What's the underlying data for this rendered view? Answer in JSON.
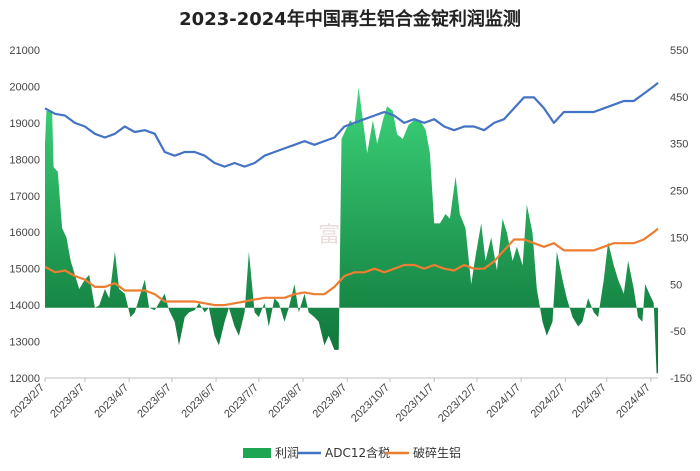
{
  "chart_data": {
    "type": "line",
    "title": "2023-2024年中国再生铝合金锭利润监测",
    "watermark": "富宝资讯",
    "categories": [
      "2023/2/7",
      "2023/3/7",
      "2023/4/7",
      "2023/5/7",
      "2023/6/7",
      "2023/7/7",
      "2023/8/7",
      "2023/9/7",
      "2023/10/7",
      "2023/11/7",
      "2023/12/7",
      "2024/1/7",
      "2024/2/7",
      "2024/3/7",
      "2024/4/7"
    ],
    "x_start": "2023-02-07",
    "x_end": "2024-04-12",
    "y_left": {
      "ticks": [
        "21000",
        "20000",
        "19000",
        "18000",
        "17000",
        "16000",
        "15000",
        "14000",
        "13000",
        "12000"
      ],
      "min": 12000,
      "max": 21000
    },
    "y_right": {
      "ticks": [
        "550",
        "450",
        "350",
        "250",
        "150",
        "50",
        "-50",
        "-150"
      ],
      "min": -150,
      "max": 550
    },
    "grid": false,
    "legend_position": "bottom",
    "colors": {
      "profit": "#1ea653",
      "profit_dark": "#0c6f35",
      "adc12": "#4472c4",
      "scrap": "#ed7d31"
    },
    "series": [
      {
        "name": "利润",
        "axis": "right",
        "kind": "area",
        "points": [
          [
            "2023-02-07",
            350
          ],
          [
            "2023-02-08",
            420
          ],
          [
            "2023-02-12",
            420
          ],
          [
            "2023-02-13",
            300
          ],
          [
            "2023-02-16",
            290
          ],
          [
            "2023-02-19",
            170
          ],
          [
            "2023-02-22",
            150
          ],
          [
            "2023-02-25",
            100
          ],
          [
            "2023-02-28",
            70
          ],
          [
            "2023-03-03",
            40
          ],
          [
            "2023-03-07",
            60
          ],
          [
            "2023-03-10",
            70
          ],
          [
            "2023-03-14",
            0
          ],
          [
            "2023-03-17",
            5
          ],
          [
            "2023-03-21",
            40
          ],
          [
            "2023-03-24",
            20
          ],
          [
            "2023-03-28",
            120
          ],
          [
            "2023-03-31",
            40
          ],
          [
            "2023-04-04",
            30
          ],
          [
            "2023-04-08",
            -20
          ],
          [
            "2023-04-11",
            -10
          ],
          [
            "2023-04-14",
            20
          ],
          [
            "2023-04-18",
            60
          ],
          [
            "2023-04-21",
            0
          ],
          [
            "2023-04-25",
            -5
          ],
          [
            "2023-04-28",
            10
          ],
          [
            "2023-05-02",
            30
          ],
          [
            "2023-05-05",
            -5
          ],
          [
            "2023-05-09",
            -30
          ],
          [
            "2023-05-12",
            -80
          ],
          [
            "2023-05-16",
            -20
          ],
          [
            "2023-05-19",
            -10
          ],
          [
            "2023-05-23",
            -5
          ],
          [
            "2023-05-26",
            10
          ],
          [
            "2023-05-30",
            -10
          ],
          [
            "2023-06-02",
            0
          ],
          [
            "2023-06-06",
            -60
          ],
          [
            "2023-06-09",
            -80
          ],
          [
            "2023-06-13",
            -30
          ],
          [
            "2023-06-16",
            0
          ],
          [
            "2023-06-20",
            -40
          ],
          [
            "2023-06-23",
            -60
          ],
          [
            "2023-06-27",
            -10
          ],
          [
            "2023-06-30",
            120
          ],
          [
            "2023-07-04",
            -10
          ],
          [
            "2023-07-07",
            -20
          ],
          [
            "2023-07-11",
            10
          ],
          [
            "2023-07-14",
            -40
          ],
          [
            "2023-07-18",
            20
          ],
          [
            "2023-07-21",
            10
          ],
          [
            "2023-07-25",
            -30
          ],
          [
            "2023-07-28",
            0
          ],
          [
            "2023-08-01",
            50
          ],
          [
            "2023-08-04",
            -10
          ],
          [
            "2023-08-08",
            30
          ],
          [
            "2023-08-11",
            -10
          ],
          [
            "2023-08-15",
            -20
          ],
          [
            "2023-08-18",
            -30
          ],
          [
            "2023-08-22",
            -80
          ],
          [
            "2023-08-25",
            -60
          ],
          [
            "2023-08-29",
            -90
          ],
          [
            "2023-09-01",
            -90
          ],
          [
            "2023-09-03",
            360
          ],
          [
            "2023-09-06",
            380
          ],
          [
            "2023-09-09",
            400
          ],
          [
            "2023-09-12",
            390
          ],
          [
            "2023-09-15",
            470
          ],
          [
            "2023-09-18",
            400
          ],
          [
            "2023-09-21",
            330
          ],
          [
            "2023-09-25",
            400
          ],
          [
            "2023-09-28",
            350
          ],
          [
            "2023-10-02",
            400
          ],
          [
            "2023-10-05",
            430
          ],
          [
            "2023-10-09",
            420
          ],
          [
            "2023-10-12",
            370
          ],
          [
            "2023-10-16",
            360
          ],
          [
            "2023-10-20",
            390
          ],
          [
            "2023-10-24",
            400
          ],
          [
            "2023-10-28",
            400
          ],
          [
            "2023-11-01",
            380
          ],
          [
            "2023-11-04",
            330
          ],
          [
            "2023-11-07",
            180
          ],
          [
            "2023-11-11",
            180
          ],
          [
            "2023-11-15",
            200
          ],
          [
            "2023-11-18",
            190
          ],
          [
            "2023-11-22",
            280
          ],
          [
            "2023-11-25",
            200
          ],
          [
            "2023-11-29",
            170
          ],
          [
            "2023-12-03",
            50
          ],
          [
            "2023-12-06",
            110
          ],
          [
            "2023-12-10",
            180
          ],
          [
            "2023-12-13",
            100
          ],
          [
            "2023-12-17",
            150
          ],
          [
            "2023-12-21",
            80
          ],
          [
            "2023-12-25",
            190
          ],
          [
            "2023-12-28",
            160
          ],
          [
            "2024-01-01",
            100
          ],
          [
            "2024-01-04",
            130
          ],
          [
            "2024-01-08",
            90
          ],
          [
            "2024-01-11",
            220
          ],
          [
            "2024-01-15",
            160
          ],
          [
            "2024-01-18",
            40
          ],
          [
            "2024-01-22",
            -30
          ],
          [
            "2024-01-25",
            -60
          ],
          [
            "2024-01-29",
            -30
          ],
          [
            "2024-02-01",
            120
          ],
          [
            "2024-02-05",
            60
          ],
          [
            "2024-02-08",
            20
          ],
          [
            "2024-02-12",
            -20
          ],
          [
            "2024-02-16",
            -40
          ],
          [
            "2024-02-19",
            -30
          ],
          [
            "2024-02-23",
            20
          ],
          [
            "2024-02-27",
            -10
          ],
          [
            "2024-03-01",
            -20
          ],
          [
            "2024-03-05",
            60
          ],
          [
            "2024-03-08",
            140
          ],
          [
            "2024-03-12",
            90
          ],
          [
            "2024-03-15",
            60
          ],
          [
            "2024-03-19",
            30
          ],
          [
            "2024-03-22",
            100
          ],
          [
            "2024-03-26",
            40
          ],
          [
            "2024-03-29",
            -20
          ],
          [
            "2024-04-01",
            -30
          ],
          [
            "2024-04-03",
            50
          ],
          [
            "2024-04-06",
            30
          ],
          [
            "2024-04-09",
            10
          ],
          [
            "2024-04-11",
            -140
          ],
          [
            "2024-04-12",
            -140
          ]
        ]
      },
      {
        "name": "ADC12含税",
        "axis": "left",
        "kind": "line",
        "points": [
          [
            "2023-02-07",
            19400
          ],
          [
            "2023-02-14",
            19250
          ],
          [
            "2023-02-21",
            19200
          ],
          [
            "2023-02-28",
            19000
          ],
          [
            "2023-03-07",
            18900
          ],
          [
            "2023-03-14",
            18700
          ],
          [
            "2023-03-21",
            18600
          ],
          [
            "2023-03-28",
            18700
          ],
          [
            "2023-04-04",
            18900
          ],
          [
            "2023-04-11",
            18750
          ],
          [
            "2023-04-18",
            18800
          ],
          [
            "2023-04-25",
            18700
          ],
          [
            "2023-05-02",
            18200
          ],
          [
            "2023-05-09",
            18100
          ],
          [
            "2023-05-16",
            18200
          ],
          [
            "2023-05-23",
            18200
          ],
          [
            "2023-05-30",
            18100
          ],
          [
            "2023-06-06",
            17900
          ],
          [
            "2023-06-13",
            17800
          ],
          [
            "2023-06-20",
            17900
          ],
          [
            "2023-06-27",
            17800
          ],
          [
            "2023-07-04",
            17900
          ],
          [
            "2023-07-11",
            18100
          ],
          [
            "2023-07-18",
            18200
          ],
          [
            "2023-07-25",
            18300
          ],
          [
            "2023-08-01",
            18400
          ],
          [
            "2023-08-08",
            18500
          ],
          [
            "2023-08-15",
            18400
          ],
          [
            "2023-08-22",
            18500
          ],
          [
            "2023-08-29",
            18600
          ],
          [
            "2023-09-05",
            18900
          ],
          [
            "2023-09-12",
            19000
          ],
          [
            "2023-09-19",
            19100
          ],
          [
            "2023-09-26",
            19200
          ],
          [
            "2023-10-03",
            19300
          ],
          [
            "2023-10-10",
            19200
          ],
          [
            "2023-10-17",
            19000
          ],
          [
            "2023-10-24",
            19100
          ],
          [
            "2023-10-31",
            19000
          ],
          [
            "2023-11-07",
            19100
          ],
          [
            "2023-11-14",
            18900
          ],
          [
            "2023-11-21",
            18800
          ],
          [
            "2023-11-28",
            18900
          ],
          [
            "2023-12-05",
            18900
          ],
          [
            "2023-12-12",
            18800
          ],
          [
            "2023-12-19",
            19000
          ],
          [
            "2023-12-26",
            19100
          ],
          [
            "2024-01-02",
            19400
          ],
          [
            "2024-01-09",
            19700
          ],
          [
            "2024-01-16",
            19700
          ],
          [
            "2024-01-23",
            19400
          ],
          [
            "2024-01-30",
            19000
          ],
          [
            "2024-02-06",
            19300
          ],
          [
            "2024-02-13",
            19300
          ],
          [
            "2024-02-20",
            19300
          ],
          [
            "2024-02-27",
            19300
          ],
          [
            "2024-03-05",
            19400
          ],
          [
            "2024-03-12",
            19500
          ],
          [
            "2024-03-19",
            19600
          ],
          [
            "2024-03-26",
            19600
          ],
          [
            "2024-04-02",
            19800
          ],
          [
            "2024-04-09",
            20000
          ],
          [
            "2024-04-12",
            20100
          ]
        ]
      },
      {
        "name": "破碎生铝",
        "axis": "left",
        "kind": "line",
        "points": [
          [
            "2023-02-07",
            15050
          ],
          [
            "2023-02-14",
            14900
          ],
          [
            "2023-02-21",
            14950
          ],
          [
            "2023-02-28",
            14800
          ],
          [
            "2023-03-07",
            14700
          ],
          [
            "2023-03-14",
            14500
          ],
          [
            "2023-03-21",
            14500
          ],
          [
            "2023-03-28",
            14600
          ],
          [
            "2023-04-04",
            14400
          ],
          [
            "2023-04-11",
            14400
          ],
          [
            "2023-04-18",
            14400
          ],
          [
            "2023-04-25",
            14300
          ],
          [
            "2023-05-02",
            14100
          ],
          [
            "2023-05-09",
            14100
          ],
          [
            "2023-05-16",
            14100
          ],
          [
            "2023-05-23",
            14100
          ],
          [
            "2023-05-30",
            14050
          ],
          [
            "2023-06-06",
            14000
          ],
          [
            "2023-06-13",
            14000
          ],
          [
            "2023-06-20",
            14050
          ],
          [
            "2023-06-27",
            14100
          ],
          [
            "2023-07-04",
            14150
          ],
          [
            "2023-07-11",
            14200
          ],
          [
            "2023-07-18",
            14200
          ],
          [
            "2023-07-25",
            14200
          ],
          [
            "2023-08-01",
            14300
          ],
          [
            "2023-08-08",
            14350
          ],
          [
            "2023-08-15",
            14300
          ],
          [
            "2023-08-22",
            14300
          ],
          [
            "2023-08-29",
            14500
          ],
          [
            "2023-09-05",
            14800
          ],
          [
            "2023-09-12",
            14900
          ],
          [
            "2023-09-19",
            14900
          ],
          [
            "2023-09-26",
            15000
          ],
          [
            "2023-10-03",
            14900
          ],
          [
            "2023-10-10",
            15000
          ],
          [
            "2023-10-17",
            15100
          ],
          [
            "2023-10-24",
            15100
          ],
          [
            "2023-10-31",
            15000
          ],
          [
            "2023-11-07",
            15100
          ],
          [
            "2023-11-14",
            15000
          ],
          [
            "2023-11-21",
            14950
          ],
          [
            "2023-11-28",
            15100
          ],
          [
            "2023-12-05",
            15000
          ],
          [
            "2023-12-12",
            15000
          ],
          [
            "2023-12-19",
            15200
          ],
          [
            "2023-12-26",
            15500
          ],
          [
            "2024-01-02",
            15800
          ],
          [
            "2024-01-09",
            15800
          ],
          [
            "2024-01-16",
            15700
          ],
          [
            "2024-01-23",
            15600
          ],
          [
            "2024-01-30",
            15700
          ],
          [
            "2024-02-06",
            15500
          ],
          [
            "2024-02-13",
            15500
          ],
          [
            "2024-02-20",
            15500
          ],
          [
            "2024-02-27",
            15500
          ],
          [
            "2024-03-05",
            15600
          ],
          [
            "2024-03-12",
            15700
          ],
          [
            "2024-03-19",
            15700
          ],
          [
            "2024-03-26",
            15700
          ],
          [
            "2024-04-02",
            15800
          ],
          [
            "2024-04-09",
            16000
          ],
          [
            "2024-04-12",
            16100
          ]
        ]
      }
    ]
  }
}
